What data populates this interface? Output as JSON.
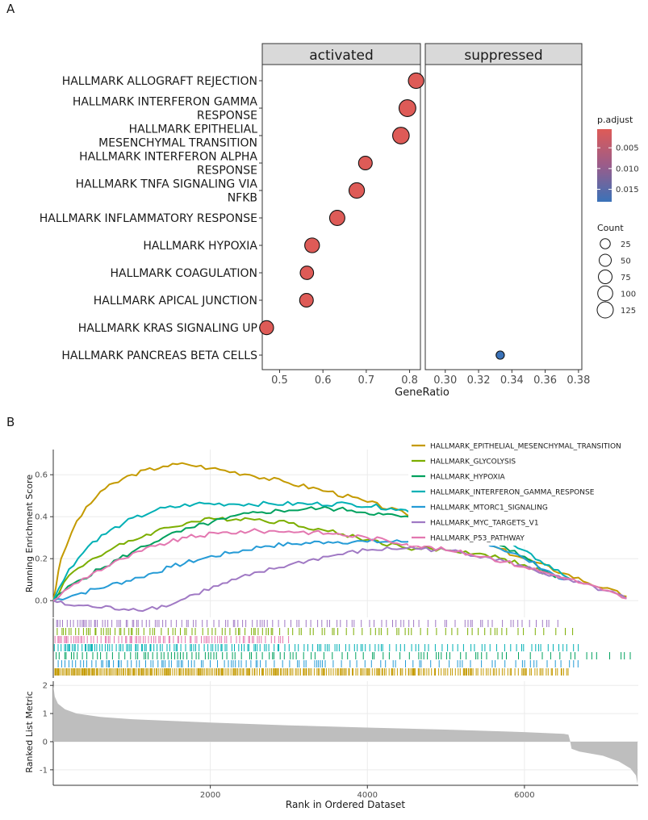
{
  "panel_a": {
    "label": "A",
    "facet_left": "activated",
    "facet_right": "suppressed",
    "xlabel": "GeneRatio",
    "legend_color_title": "p.adjust",
    "legend_size_title": "Count",
    "colors": {
      "low_p": "#d9605f",
      "high_p": "#3d6fb0",
      "facet_strip": "#d9d9d9"
    }
  },
  "panel_b": {
    "label": "B",
    "ylabel_top": "Running Enrichment Score",
    "ylabel_bottom": "Ranked List Metric",
    "xlabel": "Rank in Ordered Dataset",
    "colors": {
      "metric_fill": "#bebebe"
    }
  },
  "chart_data": [
    {
      "type": "scatter",
      "title": "",
      "xlabel": "GeneRatio",
      "categories": [
        [
          "HALLMARK ALLOGRAFT REJECTION"
        ],
        [
          "HALLMARK INTERFERON GAMMA",
          "RESPONSE"
        ],
        [
          "HALLMARK EPITHELIAL",
          "MESENCHYMAL TRANSITION"
        ],
        [
          "HALLMARK INTERFERON ALPHA",
          "RESPONSE"
        ],
        [
          "HALLMARK TNFA SIGNALING VIA",
          "NFKB"
        ],
        [
          "HALLMARK INFLAMMATORY RESPONSE"
        ],
        [
          "HALLMARK HYPOXIA"
        ],
        [
          "HALLMARK COAGULATION"
        ],
        [
          "HALLMARK APICAL JUNCTION"
        ],
        [
          "HALLMARK KRAS SIGNALING UP"
        ],
        [
          "HALLMARK PANCREAS BETA CELLS"
        ]
      ],
      "facets": [
        {
          "name": "activated",
          "xlim": [
            0.46,
            0.825
          ],
          "xticks": [
            0.5,
            0.6,
            0.7,
            0.8
          ],
          "xtick_labels": [
            "0.5",
            "0.6",
            "0.7",
            "0.8"
          ],
          "points": [
            {
              "category_index": 0,
              "gene_ratio": 0.815,
              "count": 110,
              "p_adjust": 0.0005
            },
            {
              "category_index": 1,
              "gene_ratio": 0.795,
              "count": 140,
              "p_adjust": 0.0005
            },
            {
              "category_index": 2,
              "gene_ratio": 0.78,
              "count": 135,
              "p_adjust": 0.0005
            },
            {
              "category_index": 3,
              "gene_ratio": 0.698,
              "count": 75,
              "p_adjust": 0.0005
            },
            {
              "category_index": 4,
              "gene_ratio": 0.678,
              "count": 110,
              "p_adjust": 0.0005
            },
            {
              "category_index": 5,
              "gene_ratio": 0.633,
              "count": 105,
              "p_adjust": 0.0005
            },
            {
              "category_index": 6,
              "gene_ratio": 0.575,
              "count": 95,
              "p_adjust": 0.0005
            },
            {
              "category_index": 7,
              "gene_ratio": 0.563,
              "count": 70,
              "p_adjust": 0.0005
            },
            {
              "category_index": 8,
              "gene_ratio": 0.562,
              "count": 75,
              "p_adjust": 0.0005
            },
            {
              "category_index": 9,
              "gene_ratio": 0.47,
              "count": 80,
              "p_adjust": 0.0005
            }
          ]
        },
        {
          "name": "suppressed",
          "xlim": [
            0.288,
            0.382
          ],
          "xticks": [
            0.3,
            0.32,
            0.34,
            0.36,
            0.38
          ],
          "xtick_labels": [
            "0.30",
            "0.32",
            "0.34",
            "0.36",
            "0.38"
          ],
          "points": [
            {
              "category_index": 10,
              "gene_ratio": 0.333,
              "count": 10,
              "p_adjust": 0.018
            }
          ]
        }
      ],
      "color_legend": {
        "title": "p.adjust",
        "range": [
          0.0005,
          0.018
        ],
        "ticks": [
          0.005,
          0.01,
          0.015
        ],
        "tick_labels": [
          "0.005",
          "0.010",
          "0.015"
        ]
      },
      "size_legend": {
        "title": "Count",
        "values": [
          25,
          50,
          75,
          100,
          125
        ],
        "labels": [
          "25",
          "50",
          "75",
          "100",
          "125"
        ]
      }
    },
    {
      "type": "line",
      "title": "",
      "xlabel": "Rank in Ordered Dataset",
      "ylabel": "Running Enrichment Score",
      "xlim": [
        0,
        7450
      ],
      "ylim": [
        -0.08,
        0.72
      ],
      "yticks": [
        0.0,
        0.2,
        0.4,
        0.6
      ],
      "ytick_labels": [
        "0.0",
        "0.2",
        "0.4",
        "0.6"
      ],
      "xticks": [
        2000,
        4000,
        6000
      ],
      "xtick_labels": [
        "2000",
        "4000",
        "6000"
      ],
      "series": [
        {
          "name": "HALLMARK_EPITHELIAL_MESENCHYMAL_TRANSITION",
          "color": "#c49a00",
          "x": [
            0,
            100,
            300,
            600,
            1000,
            1400,
            1700,
            2000,
            2500,
            3000,
            3500,
            4000,
            4500,
            5000,
            5500,
            6000,
            6500,
            7000,
            7300
          ],
          "y": [
            0,
            0.2,
            0.38,
            0.52,
            0.6,
            0.64,
            0.65,
            0.63,
            0.6,
            0.56,
            0.52,
            0.47,
            0.41,
            0.33,
            0.27,
            0.2,
            0.13,
            0.06,
            0.02
          ]
        },
        {
          "name": "HALLMARK_GLYCOLYSIS",
          "color": "#7cae00",
          "x": [
            0,
            200,
            500,
            900,
            1300,
            1700,
            2100,
            2500,
            3000,
            3500,
            4000,
            4500,
            5000,
            5500,
            6000,
            6400
          ],
          "y": [
            0,
            0.12,
            0.2,
            0.27,
            0.33,
            0.37,
            0.39,
            0.39,
            0.37,
            0.33,
            0.29,
            0.25,
            0.24,
            0.22,
            0.17,
            0.11
          ]
        },
        {
          "name": "HALLMARK_HYPOXIA",
          "color": "#00a15e",
          "x": [
            0,
            250,
            600,
            1000,
            1400,
            1800,
            2200,
            2600,
            3000,
            3400,
            3800,
            4200,
            4600,
            5000,
            5500,
            6000,
            6400
          ],
          "y": [
            0,
            0.08,
            0.15,
            0.23,
            0.3,
            0.35,
            0.39,
            0.42,
            0.43,
            0.44,
            0.43,
            0.41,
            0.39,
            0.36,
            0.3,
            0.21,
            0.11
          ]
        },
        {
          "name": "HALLMARK_INTERFERON_GAMMA_RESPONSE",
          "color": "#00b0b5",
          "x": [
            0,
            200,
            500,
            900,
            1300,
            1800,
            2300,
            2800,
            3300,
            3800,
            4300,
            4800,
            5300,
            5800,
            6200,
            6600
          ],
          "y": [
            0,
            0.15,
            0.28,
            0.37,
            0.43,
            0.46,
            0.46,
            0.46,
            0.46,
            0.46,
            0.44,
            0.41,
            0.35,
            0.27,
            0.19,
            0.1
          ]
        },
        {
          "name": "HALLMARK_MTORC1_SIGNALING",
          "color": "#259bd6",
          "x": [
            0,
            300,
            700,
            1100,
            1500,
            1900,
            2300,
            2700,
            3100,
            3500,
            4000,
            4500,
            5000,
            5500,
            6000,
            6500
          ],
          "y": [
            0,
            0.03,
            0.07,
            0.11,
            0.16,
            0.2,
            0.23,
            0.26,
            0.27,
            0.28,
            0.28,
            0.28,
            0.3,
            0.28,
            0.2,
            0.1
          ]
        },
        {
          "name": "HALLMARK_MYC_TARGETS_V1",
          "color": "#a079c4",
          "x": [
            0,
            150,
            500,
            900,
            1200,
            1500,
            1800,
            2100,
            2500,
            3000,
            3500,
            4000,
            4500,
            5000,
            5500,
            6000,
            6500,
            7000,
            7300
          ],
          "y": [
            0,
            -0.02,
            -0.03,
            -0.04,
            -0.04,
            -0.02,
            0.03,
            0.07,
            0.12,
            0.17,
            0.21,
            0.24,
            0.25,
            0.24,
            0.21,
            0.16,
            0.1,
            0.05,
            0.01
          ]
        },
        {
          "name": "HALLMARK_P53_PATHWAY",
          "color": "#e377b0",
          "x": [
            0,
            200,
            500,
            900,
            1300,
            1700,
            2100,
            2500,
            3000,
            3500,
            4000,
            4500,
            5000,
            5500,
            6000,
            6500,
            7000,
            7300
          ],
          "y": [
            0,
            0.06,
            0.13,
            0.2,
            0.26,
            0.3,
            0.32,
            0.33,
            0.33,
            0.32,
            0.3,
            0.27,
            0.24,
            0.21,
            0.16,
            0.11,
            0.05,
            0.01
          ]
        }
      ]
    },
    {
      "type": "area",
      "title": "",
      "xlabel": "Rank in Ordered Dataset",
      "ylabel": "Ranked List Metric",
      "xlim": [
        0,
        7450
      ],
      "ylim": [
        -1.55,
        2.15
      ],
      "yticks": [
        -1,
        0,
        1,
        2
      ],
      "ytick_labels": [
        "-1",
        "0",
        "1",
        "2"
      ],
      "xticks": [
        2000,
        4000,
        6000
      ],
      "xtick_labels": [
        "2000",
        "4000",
        "6000"
      ],
      "x": [
        0,
        20,
        60,
        150,
        300,
        600,
        1000,
        2000,
        3000,
        4000,
        5000,
        6000,
        6500,
        6560,
        6580,
        6600,
        6700,
        7000,
        7200,
        7350,
        7420,
        7440
      ],
      "values": [
        2.0,
        1.6,
        1.35,
        1.15,
        1.0,
        0.88,
        0.8,
        0.68,
        0.58,
        0.5,
        0.43,
        0.34,
        0.28,
        0.25,
        0.05,
        -0.25,
        -0.35,
        -0.5,
        -0.7,
        -0.95,
        -1.2,
        -1.5
      ]
    }
  ]
}
